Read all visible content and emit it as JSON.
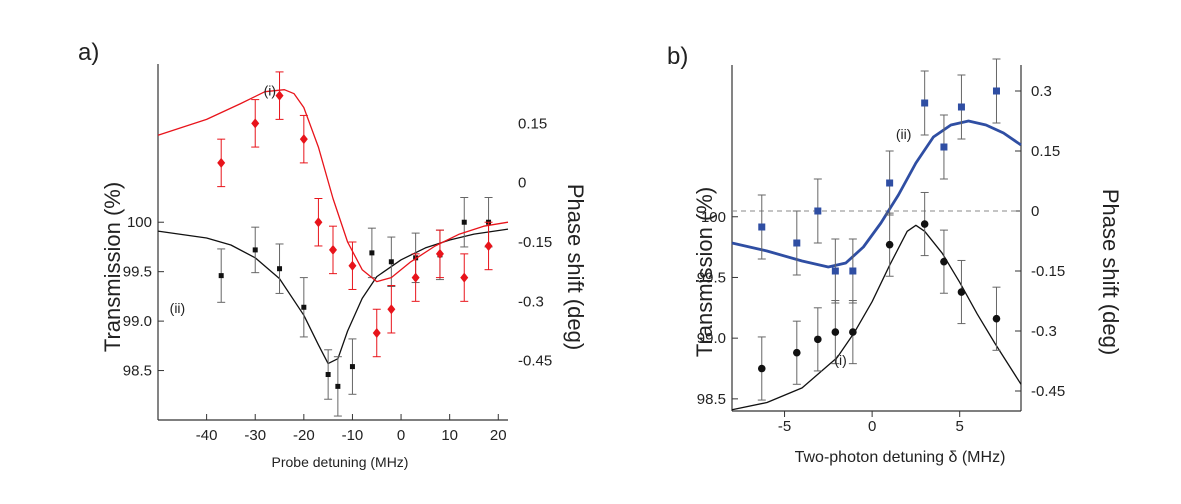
{
  "chart_data": [
    {
      "panel": "a)",
      "type": "scatter",
      "xlabel": "Probe detuning (MHz)",
      "ylabel_left": "Transmission (%)",
      "ylabel_right": "Phase shift (deg)",
      "xlim": [
        -50,
        22
      ],
      "xticks": [
        -40,
        -30,
        -20,
        -10,
        0,
        10,
        20
      ],
      "ylim_left": [
        98.0,
        101.6
      ],
      "yticks_left": [
        {
          "value": 100,
          "label": "100"
        },
        {
          "value": 99.5,
          "label": "99.5"
        },
        {
          "value": 99.0,
          "label": "99.0"
        },
        {
          "value": 98.5,
          "label": "98.5"
        }
      ],
      "ylim_right": [
        -0.6,
        0.3
      ],
      "yticks_right": [
        {
          "value": 0.15,
          "label": "0.15"
        },
        {
          "value": 0,
          "label": "0"
        },
        {
          "value": -0.15,
          "label": "-0.15"
        },
        {
          "value": -0.3,
          "label": "-0.3"
        },
        {
          "value": -0.45,
          "label": "-0.45"
        }
      ],
      "annotations": [
        {
          "text": "(i)",
          "x": -27,
          "y_right": 0.22
        },
        {
          "text": "(ii)",
          "x": -46,
          "y_left": 99.08
        }
      ],
      "series": [
        {
          "name": "(ii) transmission",
          "axis": "left",
          "color": "#111111",
          "marker": "square",
          "points": [
            {
              "x": -37,
              "y": 99.46,
              "err": 0.27
            },
            {
              "x": -30,
              "y": 99.72,
              "err": 0.23
            },
            {
              "x": -25,
              "y": 99.53,
              "err": 0.25
            },
            {
              "x": -20,
              "y": 99.14,
              "err": 0.3
            },
            {
              "x": -15,
              "y": 98.46,
              "err": 0.25
            },
            {
              "x": -13,
              "y": 98.34,
              "err": 0.3
            },
            {
              "x": -10,
              "y": 98.54,
              "err": 0.28
            },
            {
              "x": -6,
              "y": 99.69,
              "err": 0.25
            },
            {
              "x": -2,
              "y": 99.6,
              "err": 0.25
            },
            {
              "x": 3,
              "y": 99.64,
              "err": 0.25
            },
            {
              "x": 8,
              "y": 99.67,
              "err": 0.25
            },
            {
              "x": 13,
              "y": 100.0,
              "err": 0.25
            },
            {
              "x": 18,
              "y": 100.0,
              "err": 0.25
            }
          ],
          "fit": [
            [
              -50,
              99.91
            ],
            [
              -40,
              99.84
            ],
            [
              -35,
              99.77
            ],
            [
              -30,
              99.64
            ],
            [
              -25,
              99.43
            ],
            [
              -20,
              99.06
            ],
            [
              -17,
              98.76
            ],
            [
              -15,
              98.57
            ],
            [
              -13,
              98.62
            ],
            [
              -11,
              98.9
            ],
            [
              -8,
              99.23
            ],
            [
              -5,
              99.45
            ],
            [
              0,
              99.62
            ],
            [
              5,
              99.74
            ],
            [
              10,
              99.82
            ],
            [
              15,
              99.88
            ],
            [
              22,
              99.93
            ]
          ]
        },
        {
          "name": "(i) phase shift",
          "axis": "right",
          "color": "#e8141b",
          "marker": "diamond",
          "points": [
            {
              "x": -37,
              "y": 0.05,
              "err": 0.06
            },
            {
              "x": -30,
              "y": 0.15,
              "err": 0.06
            },
            {
              "x": -25,
              "y": 0.22,
              "err": 0.06
            },
            {
              "x": -20,
              "y": 0.11,
              "err": 0.06
            },
            {
              "x": -17,
              "y": -0.1,
              "err": 0.06
            },
            {
              "x": -14,
              "y": -0.17,
              "err": 0.06
            },
            {
              "x": -10,
              "y": -0.21,
              "err": 0.06
            },
            {
              "x": -5,
              "y": -0.38,
              "err": 0.06
            },
            {
              "x": -2,
              "y": -0.32,
              "err": 0.06
            },
            {
              "x": 3,
              "y": -0.24,
              "err": 0.06
            },
            {
              "x": 8,
              "y": -0.18,
              "err": 0.06
            },
            {
              "x": 13,
              "y": -0.24,
              "err": 0.06
            },
            {
              "x": 18,
              "y": -0.16,
              "err": 0.06
            }
          ],
          "fit": [
            [
              -50,
              0.12
            ],
            [
              -40,
              0.16
            ],
            [
              -33,
              0.2
            ],
            [
              -28,
              0.23
            ],
            [
              -24,
              0.235
            ],
            [
              -22,
              0.225
            ],
            [
              -20,
              0.19
            ],
            [
              -17,
              0.09
            ],
            [
              -14,
              -0.04
            ],
            [
              -11,
              -0.15
            ],
            [
              -8,
              -0.22
            ],
            [
              -5,
              -0.25
            ],
            [
              -2,
              -0.24
            ],
            [
              2,
              -0.2
            ],
            [
              7,
              -0.16
            ],
            [
              12,
              -0.13
            ],
            [
              17,
              -0.11
            ],
            [
              22,
              -0.1
            ]
          ]
        }
      ]
    },
    {
      "panel": "b)",
      "type": "scatter",
      "xlabel": "Two-photon detuning δ (MHz)",
      "ylabel_left": "Transmission (%)",
      "ylabel_right": "Phase shift (deg)",
      "xlim": [
        -8,
        8.5
      ],
      "xticks": [
        -5,
        0,
        5
      ],
      "ylim_left": [
        98.4,
        101.25
      ],
      "yticks_left": [
        {
          "value": 100,
          "label": "100"
        },
        {
          "value": 99.5,
          "label": "99.5"
        },
        {
          "value": 99.0,
          "label": "99.0"
        },
        {
          "value": 98.5,
          "label": "98.5"
        }
      ],
      "ylim_right": [
        -0.5,
        0.365
      ],
      "yticks_right": [
        {
          "value": 0.3,
          "label": "0.3"
        },
        {
          "value": 0.15,
          "label": "0.15"
        },
        {
          "value": 0,
          "label": "0"
        },
        {
          "value": -0.15,
          "label": "-0.15"
        },
        {
          "value": -0.3,
          "label": "-0.3"
        },
        {
          "value": -0.45,
          "label": "-0.45"
        }
      ],
      "reference_line": {
        "axis": "right",
        "y": 0,
        "style": "dashed"
      },
      "annotations": [
        {
          "text": "(ii)",
          "x": 1.8,
          "y_right": 0.18
        },
        {
          "text": "(i)",
          "x": -1.8,
          "y_left": 98.78
        }
      ],
      "series": [
        {
          "name": "(ii) phase shift",
          "axis": "right",
          "color": "#2f4ea3",
          "marker": "square",
          "points": [
            {
              "x": -6.3,
              "y": -0.04,
              "err": 0.08
            },
            {
              "x": -4.3,
              "y": -0.08,
              "err": 0.08
            },
            {
              "x": -3.1,
              "y": 0,
              "err": 0.08
            },
            {
              "x": -2.1,
              "y": -0.15,
              "err": 0.08
            },
            {
              "x": -1.1,
              "y": -0.15,
              "err": 0.08
            },
            {
              "x": 1.0,
              "y": 0.07,
              "err": 0.08
            },
            {
              "x": 3.0,
              "y": 0.27,
              "err": 0.08
            },
            {
              "x": 4.1,
              "y": 0.16,
              "err": 0.08
            },
            {
              "x": 5.1,
              "y": 0.26,
              "err": 0.08
            },
            {
              "x": 7.1,
              "y": 0.3,
              "err": 0.08
            }
          ],
          "fit": [
            [
              -8,
              -0.08
            ],
            [
              -6,
              -0.1
            ],
            [
              -4,
              -0.125
            ],
            [
              -2.5,
              -0.14
            ],
            [
              -1.5,
              -0.13
            ],
            [
              -0.5,
              -0.09
            ],
            [
              0.5,
              -0.03
            ],
            [
              1.5,
              0.04
            ],
            [
              2.5,
              0.12
            ],
            [
              3.5,
              0.185
            ],
            [
              4.5,
              0.215
            ],
            [
              5.5,
              0.225
            ],
            [
              6.5,
              0.215
            ],
            [
              7.5,
              0.195
            ],
            [
              8.5,
              0.165
            ]
          ]
        },
        {
          "name": "(i) transmission",
          "axis": "left",
          "color": "#111111",
          "marker": "circle",
          "points": [
            {
              "x": -6.3,
              "y": 98.75,
              "err": 0.26
            },
            {
              "x": -4.3,
              "y": 98.88,
              "err": 0.26
            },
            {
              "x": -3.1,
              "y": 98.99,
              "err": 0.26
            },
            {
              "x": -2.1,
              "y": 99.05,
              "err": 0.26
            },
            {
              "x": -1.1,
              "y": 99.05,
              "err": 0.26
            },
            {
              "x": 1.0,
              "y": 99.77,
              "err": 0.26
            },
            {
              "x": 3.0,
              "y": 99.94,
              "err": 0.26
            },
            {
              "x": 4.1,
              "y": 99.63,
              "err": 0.26
            },
            {
              "x": 5.1,
              "y": 99.38,
              "err": 0.26
            },
            {
              "x": 7.1,
              "y": 99.16,
              "err": 0.26
            }
          ],
          "fit": [
            [
              -8,
              98.41
            ],
            [
              -6,
              98.47
            ],
            [
              -4,
              98.59
            ],
            [
              -2,
              98.84
            ],
            [
              -1,
              99.05
            ],
            [
              0,
              99.3
            ],
            [
              1,
              99.6
            ],
            [
              2,
              99.88
            ],
            [
              2.5,
              99.93
            ],
            [
              3,
              99.88
            ],
            [
              4,
              99.7
            ],
            [
              5,
              99.46
            ],
            [
              6,
              99.2
            ],
            [
              7,
              98.96
            ],
            [
              8.5,
              98.62
            ]
          ]
        }
      ]
    }
  ]
}
